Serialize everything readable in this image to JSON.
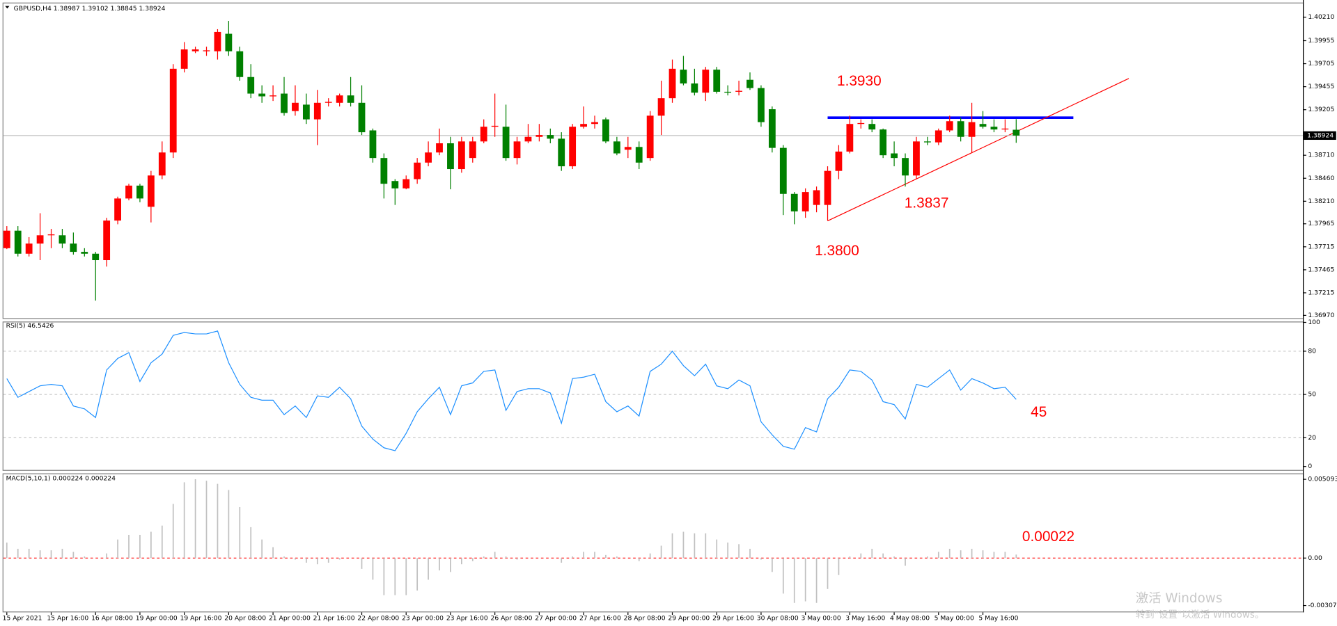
{
  "chart_data": [
    {
      "type": "candlestick",
      "title": "GBPUSD,H4  1.38987 1.39102 1.38845 1.38924",
      "categories": [
        "15 Apr 2021",
        null,
        null,
        null,
        "15 Apr 16:00",
        null,
        null,
        null,
        "16 Apr 08:00",
        null,
        null,
        null,
        "19 Apr 00:00",
        null,
        null,
        null,
        "19 Apr 16:00",
        null,
        null,
        null,
        "20 Apr 08:00",
        null,
        null,
        null,
        "21 Apr 00:00",
        null,
        null,
        null,
        "21 Apr 16:00",
        null,
        null,
        null,
        "22 Apr 08:00",
        null,
        null,
        null,
        "23 Apr 00:00",
        null,
        null,
        null,
        "23 Apr 16:00",
        null,
        null,
        null,
        "26 Apr 08:00",
        null,
        null,
        null,
        "27 Apr 00:00",
        null,
        null,
        null,
        "27 Apr 16:00",
        null,
        null,
        null,
        "28 Apr 08:00",
        null,
        null,
        null,
        "29 Apr 00:00",
        null,
        null,
        null,
        "29 Apr 16:00",
        null,
        null,
        null,
        "30 Apr 08:00",
        null,
        null,
        null,
        "3 May 00:00",
        null,
        null,
        null,
        "3 May 16:00",
        null,
        null,
        null,
        "4 May 08:00",
        null,
        null,
        null,
        "5 May 00:00",
        null,
        null,
        null,
        "5 May 16:00",
        null,
        null,
        null
      ],
      "open": [
        1.377,
        1.3789,
        1.3764,
        1.3775,
        1.3784,
        1.3784,
        1.3775,
        1.3766,
        1.3764,
        1.3757,
        1.38,
        1.3824,
        1.3838,
        1.3815,
        1.3849,
        1.3874,
        1.3965,
        1.3984,
        1.3984,
        1.3984,
        1.4003,
        1.3984,
        1.3956,
        1.3938,
        1.3935,
        1.3938,
        1.3919,
        1.3926,
        1.391,
        1.3928,
        1.3928,
        1.3936,
        1.3928,
        1.3898,
        1.3868,
        1.3843,
        1.3835,
        1.3845,
        1.3863,
        1.3874,
        1.3884,
        1.3856,
        1.3868,
        1.3886,
        1.3902,
        1.3902,
        1.3868,
        1.3886,
        1.3891,
        1.3893,
        1.3889,
        1.3859,
        1.3902,
        1.3905,
        1.391,
        1.3886,
        1.3877,
        1.388,
        1.3868,
        1.3914,
        1.3933,
        1.3964,
        1.3949,
        1.3939,
        1.3964,
        1.394,
        1.394,
        1.3953,
        1.3944,
        1.3921,
        1.3879,
        1.3829,
        1.381,
        1.3817,
        1.3817,
        1.3854,
        1.3875,
        1.3905,
        1.3905,
        1.3899,
        1.3873,
        1.3868,
        1.3849,
        1.3886,
        1.3885,
        1.3898,
        1.3908,
        1.3891,
        1.3905,
        1.3902,
        1.3899,
        1.38987
      ],
      "high": [
        1.3794,
        1.3794,
        1.3782,
        1.3808,
        1.3791,
        1.3791,
        1.3787,
        1.377,
        1.3766,
        1.3803,
        1.3826,
        1.384,
        1.384,
        1.3854,
        1.3886,
        1.397,
        1.3994,
        1.3989,
        1.3989,
        1.4008,
        1.4017,
        1.3989,
        1.397,
        1.3947,
        1.3947,
        1.3956,
        1.3947,
        1.3938,
        1.3942,
        1.3933,
        1.3938,
        1.3956,
        1.3947,
        1.39,
        1.3873,
        1.3845,
        1.3849,
        1.3868,
        1.3886,
        1.39,
        1.3891,
        1.3891,
        1.3891,
        1.391,
        1.3938,
        1.3926,
        1.3891,
        1.3905,
        1.3905,
        1.39,
        1.3896,
        1.3905,
        1.3924,
        1.3914,
        1.3912,
        1.3891,
        1.3891,
        1.3886,
        1.3919,
        1.3952,
        1.3975,
        1.3979,
        1.3965,
        1.3967,
        1.3967,
        1.3947,
        1.3952,
        1.3961,
        1.3947,
        1.3924,
        1.3882,
        1.3831,
        1.3835,
        1.3837,
        1.3859,
        1.3882,
        1.3914,
        1.391,
        1.391,
        1.39,
        1.3886,
        1.3873,
        1.3891,
        1.3891,
        1.39,
        1.3914,
        1.3912,
        1.3928,
        1.3919,
        1.391,
        1.391,
        1.39102
      ],
      "low": [
        1.3769,
        1.3761,
        1.3761,
        1.3757,
        1.377,
        1.377,
        1.3763,
        1.3761,
        1.3713,
        1.375,
        1.3796,
        1.3822,
        1.382,
        1.3798,
        1.3845,
        1.3868,
        1.3961,
        1.3982,
        1.3979,
        1.3975,
        1.3979,
        1.3952,
        1.3933,
        1.3928,
        1.393,
        1.3914,
        1.3914,
        1.3905,
        1.3882,
        1.3924,
        1.3924,
        1.3924,
        1.3893,
        1.3863,
        1.3824,
        1.3817,
        1.3834,
        1.384,
        1.3859,
        1.3871,
        1.3834,
        1.3852,
        1.3863,
        1.3884,
        1.3891,
        1.3865,
        1.3861,
        1.3884,
        1.3886,
        1.3884,
        1.3854,
        1.3856,
        1.39,
        1.39,
        1.3884,
        1.3871,
        1.3868,
        1.3856,
        1.3865,
        1.3893,
        1.3928,
        1.3947,
        1.3936,
        1.393,
        1.3938,
        1.3936,
        1.3936,
        1.3942,
        1.3902,
        1.3874,
        1.3806,
        1.3796,
        1.3803,
        1.3809,
        1.38,
        1.3845,
        1.3873,
        1.39,
        1.3896,
        1.3868,
        1.3859,
        1.3837,
        1.3845,
        1.3882,
        1.3882,
        1.3896,
        1.3886,
        1.3874,
        1.39,
        1.3896,
        1.3896,
        1.38845
      ],
      "close": [
        1.3789,
        1.3764,
        1.3775,
        1.3784,
        1.3785,
        1.3775,
        1.3766,
        1.3764,
        1.3757,
        1.38,
        1.3824,
        1.3838,
        1.3824,
        1.3849,
        1.3874,
        1.3965,
        1.3986,
        1.3986,
        1.3985,
        1.4005,
        1.3984,
        1.3956,
        1.3938,
        1.3935,
        1.3936,
        1.3917,
        1.3928,
        1.391,
        1.3928,
        1.3929,
        1.3936,
        1.3928,
        1.3896,
        1.3868,
        1.384,
        1.3835,
        1.3845,
        1.3863,
        1.3874,
        1.3884,
        1.3856,
        1.3886,
        1.3886,
        1.3902,
        1.3903,
        1.3868,
        1.3886,
        1.3891,
        1.3893,
        1.3889,
        1.3859,
        1.3902,
        1.3905,
        1.3907,
        1.3886,
        1.3873,
        1.388,
        1.3863,
        1.3914,
        1.3933,
        1.3965,
        1.3949,
        1.3939,
        1.3964,
        1.394,
        1.3939,
        1.3941,
        1.3944,
        1.3907,
        1.3879,
        1.3829,
        1.381,
        1.3831,
        1.3833,
        1.3854,
        1.3875,
        1.3905,
        1.3906,
        1.3899,
        1.3871,
        1.3868,
        1.3849,
        1.3886,
        1.3885,
        1.3898,
        1.3908,
        1.3891,
        1.3907,
        1.3902,
        1.3899,
        1.39,
        1.38924
      ],
      "up_color": "#ff0000",
      "down_color": "#008000",
      "ylim": [
        1.3694,
        1.4036
      ],
      "yticks": [
        {
          "value": 1.4021,
          "label": "1.40210"
        },
        {
          "value": 1.39955,
          "label": "1.39955"
        },
        {
          "value": 1.39705,
          "label": "1.39705"
        },
        {
          "value": 1.39455,
          "label": "1.39455"
        },
        {
          "value": 1.39205,
          "label": "1.39205"
        },
        {
          "value": 1.3871,
          "label": "1.38710"
        },
        {
          "value": 1.3846,
          "label": "1.38460"
        },
        {
          "value": 1.3821,
          "label": "1.38210"
        },
        {
          "value": 1.37965,
          "label": "1.37965"
        },
        {
          "value": 1.37715,
          "label": "1.37715"
        },
        {
          "value": 1.37465,
          "label": "1.37465"
        },
        {
          "value": 1.37215,
          "label": "1.37215"
        },
        {
          "value": 1.3697,
          "label": "1.36970"
        }
      ],
      "current_price": 1.38924,
      "annotations": [
        "1.3930",
        "1.3800",
        "1.3837"
      ],
      "annotation_color": "#ff0000"
    },
    {
      "type": "line",
      "title": "RSI(5) 46.5426",
      "values": [
        61,
        48,
        52,
        56,
        57,
        56,
        42,
        40,
        34,
        67,
        75,
        79,
        59,
        72,
        78,
        91,
        93,
        92,
        92,
        94,
        72,
        57,
        48,
        46,
        46,
        36,
        42,
        34,
        49,
        48,
        55,
        47,
        28,
        19,
        13,
        11,
        23,
        38,
        47,
        55,
        36,
        56,
        58,
        66,
        67,
        39,
        52,
        54,
        54,
        51,
        30,
        61,
        62,
        64,
        45,
        38,
        42,
        35,
        66,
        71,
        80,
        70,
        63,
        71,
        56,
        54,
        60,
        56,
        31,
        22,
        14,
        12,
        27,
        24,
        47,
        55,
        67,
        66,
        60,
        45,
        43,
        33,
        57,
        55,
        61,
        67,
        53,
        61,
        58,
        54,
        55,
        46.5426
      ],
      "color": "#1e90ff",
      "ylim": [
        0,
        100
      ],
      "yticks": [
        0,
        20,
        50,
        80,
        100
      ],
      "grid": true,
      "grid_color": "#c8c8c8",
      "annotations": [
        "45"
      ],
      "annotation_color": "#ff0000"
    },
    {
      "type": "bar",
      "title": "MACD(5,10,1) 0.000224 0.000224",
      "values": [
        0.001,
        0.0006,
        0.0006,
        0.0005,
        0.0005,
        0.0006,
        0.0004,
        0.0001,
        0,
        0.0003,
        0.0012,
        0.0015,
        0.0015,
        0.0017,
        0.0021,
        0.0035,
        0.0049,
        0.0051,
        0.005,
        0.0048,
        0.0044,
        0.0033,
        0.002,
        0.0012,
        0.0007,
        0.0001,
        -0.0001,
        -0.0003,
        -0.0004,
        -0.0003,
        -0.0001,
        0,
        -0.0007,
        -0.0014,
        -0.0024,
        -0.0024,
        -0.0024,
        -0.0021,
        -0.0014,
        -0.0008,
        -0.0009,
        -0.0004,
        -0.0002,
        0.0001,
        0.0004,
        0.0001,
        -0.0001,
        0,
        0,
        0,
        -0.0003,
        0.0001,
        0.0004,
        0.0004,
        0.0002,
        0.0001,
        0,
        -0.0002,
        0.0003,
        0.0008,
        0.0016,
        0.0017,
        0.0016,
        0.0016,
        0.0012,
        0.001,
        0.0009,
        0.0006,
        -0.0001,
        -0.0009,
        -0.0023,
        -0.0029,
        -0.0028,
        -0.0029,
        -0.002,
        -0.0011,
        0.0001,
        0.0003,
        0.0006,
        0.0003,
        0.0001,
        -0.0005,
        0,
        0.0001,
        0.0004,
        0.0006,
        0.0005,
        0.0006,
        0.0005,
        0.0004,
        0.0004,
        0.000224
      ],
      "color": "#c0c0c0",
      "ylim": [
        -0.003071,
        0.005093
      ],
      "yticks": [
        -0.003071,
        {
          "value": 0,
          "label": "0.00"
        },
        0.005093
      ],
      "grid": true,
      "grid_color": "#ff0000",
      "annotations": [
        "0.00022"
      ],
      "annotation_color": "#ff0000"
    }
  ],
  "watermark": [
    "激活 Windows",
    "转到\"设置\"以激活 Windows。"
  ]
}
